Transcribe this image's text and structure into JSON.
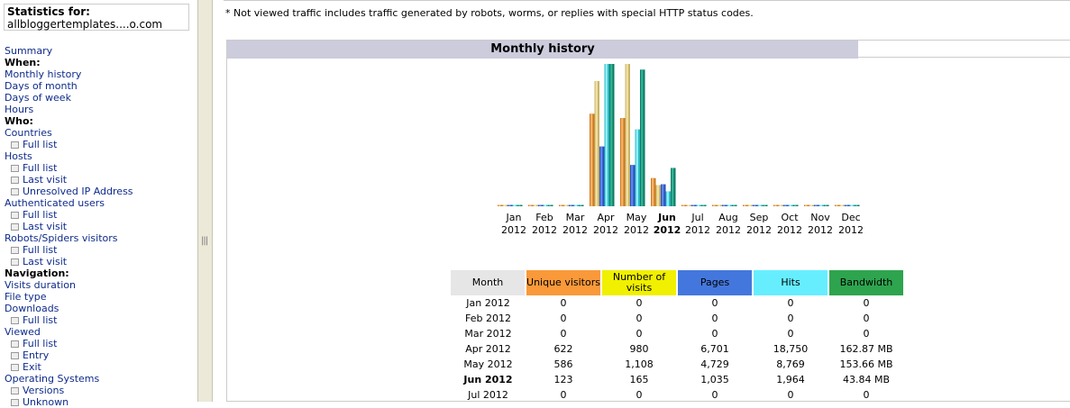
{
  "sidebar": {
    "stats_label": "Statistics for:",
    "site": "allbloggertemplates....o.com",
    "nav": [
      {
        "type": "link",
        "label": "Summary"
      },
      {
        "type": "head",
        "label": "When:"
      },
      {
        "type": "link",
        "label": "Monthly history"
      },
      {
        "type": "link",
        "label": "Days of month"
      },
      {
        "type": "link",
        "label": "Days of week"
      },
      {
        "type": "link",
        "label": "Hours"
      },
      {
        "type": "head",
        "label": "Who:"
      },
      {
        "type": "link",
        "label": "Countries"
      },
      {
        "type": "sub",
        "label": "Full list"
      },
      {
        "type": "link",
        "label": "Hosts"
      },
      {
        "type": "sub",
        "label": "Full list"
      },
      {
        "type": "sub",
        "label": "Last visit"
      },
      {
        "type": "sub",
        "label": "Unresolved IP Address"
      },
      {
        "type": "link",
        "label": "Authenticated users"
      },
      {
        "type": "sub",
        "label": "Full list"
      },
      {
        "type": "sub",
        "label": "Last visit"
      },
      {
        "type": "link",
        "label": "Robots/Spiders visitors"
      },
      {
        "type": "sub",
        "label": "Full list"
      },
      {
        "type": "sub",
        "label": "Last visit"
      },
      {
        "type": "head",
        "label": "Navigation:"
      },
      {
        "type": "link",
        "label": "Visits duration"
      },
      {
        "type": "link",
        "label": "File type"
      },
      {
        "type": "link",
        "label": "Downloads"
      },
      {
        "type": "sub",
        "label": "Full list"
      },
      {
        "type": "link",
        "label": "Viewed"
      },
      {
        "type": "sub",
        "label": "Full list"
      },
      {
        "type": "sub",
        "label": "Entry"
      },
      {
        "type": "sub",
        "label": "Exit"
      },
      {
        "type": "link",
        "label": "Operating Systems"
      },
      {
        "type": "sub",
        "label": "Versions"
      },
      {
        "type": "sub",
        "label": "Unknown"
      }
    ]
  },
  "content": {
    "note": "* Not viewed traffic includes traffic generated by robots, worms, or replies with special HTTP status codes.",
    "panel_title": "Monthly history"
  },
  "colors": {
    "unique_visitors": "#f9993a",
    "visits": "#f0f000",
    "pages": "#4477dd",
    "hits": "#66eeff",
    "bandwidth": "#2ea44f"
  },
  "table": {
    "headers": [
      "Month",
      "Unique visitors",
      "Number of visits",
      "Pages",
      "Hits",
      "Bandwidth"
    ],
    "rows": [
      {
        "month": "Jan 2012",
        "uv": "0",
        "visits": "0",
        "pages": "0",
        "hits": "0",
        "bw": "0",
        "current": false
      },
      {
        "month": "Feb 2012",
        "uv": "0",
        "visits": "0",
        "pages": "0",
        "hits": "0",
        "bw": "0",
        "current": false
      },
      {
        "month": "Mar 2012",
        "uv": "0",
        "visits": "0",
        "pages": "0",
        "hits": "0",
        "bw": "0",
        "current": false
      },
      {
        "month": "Apr 2012",
        "uv": "622",
        "visits": "980",
        "pages": "6,701",
        "hits": "18,750",
        "bw": "162.87 MB",
        "current": false
      },
      {
        "month": "May 2012",
        "uv": "586",
        "visits": "1,108",
        "pages": "4,729",
        "hits": "8,769",
        "bw": "153.66 MB",
        "current": false
      },
      {
        "month": "Jun 2012",
        "uv": "123",
        "visits": "165",
        "pages": "1,035",
        "hits": "1,964",
        "bw": "43.84 MB",
        "current": true
      },
      {
        "month": "Jul 2012",
        "uv": "0",
        "visits": "0",
        "pages": "0",
        "hits": "0",
        "bw": "0",
        "current": false
      }
    ]
  },
  "chart_data": {
    "type": "bar",
    "categories": [
      "Jan",
      "Feb",
      "Mar",
      "Apr",
      "May",
      "Jun",
      "Jul",
      "Aug",
      "Sep",
      "Oct",
      "Nov",
      "Dec"
    ],
    "category_years": [
      "2012",
      "2012",
      "2012",
      "2012",
      "2012",
      "2012",
      "2012",
      "2012",
      "2012",
      "2012",
      "2012",
      "2012"
    ],
    "current_category": "Jun",
    "series": [
      {
        "key": "uv",
        "color": "#c97a22",
        "light": "#f5b164",
        "values": [
          0,
          0,
          0,
          622,
          586,
          123,
          0,
          0,
          0,
          0,
          0,
          0
        ]
      },
      {
        "key": "visits",
        "color": "#c9b46a",
        "light": "#f0e0a0",
        "values": [
          0,
          0,
          0,
          980,
          1108,
          165,
          0,
          0,
          0,
          0,
          0,
          0
        ]
      },
      {
        "key": "pages",
        "color": "#2a4fb8",
        "light": "#5b85e8",
        "values": [
          0,
          0,
          0,
          6701,
          4729,
          1035,
          0,
          0,
          0,
          0,
          0,
          0
        ]
      },
      {
        "key": "hits",
        "color": "#30b8c4",
        "light": "#8ef0f8",
        "values": [
          0,
          0,
          0,
          18750,
          8769,
          1964,
          0,
          0,
          0,
          0,
          0,
          0
        ]
      },
      {
        "key": "bandwidth",
        "color": "#0e7a62",
        "light": "#30b094",
        "values": [
          0,
          0,
          0,
          162.87,
          153.66,
          43.84,
          0,
          0,
          0,
          0,
          0,
          0
        ]
      }
    ]
  }
}
